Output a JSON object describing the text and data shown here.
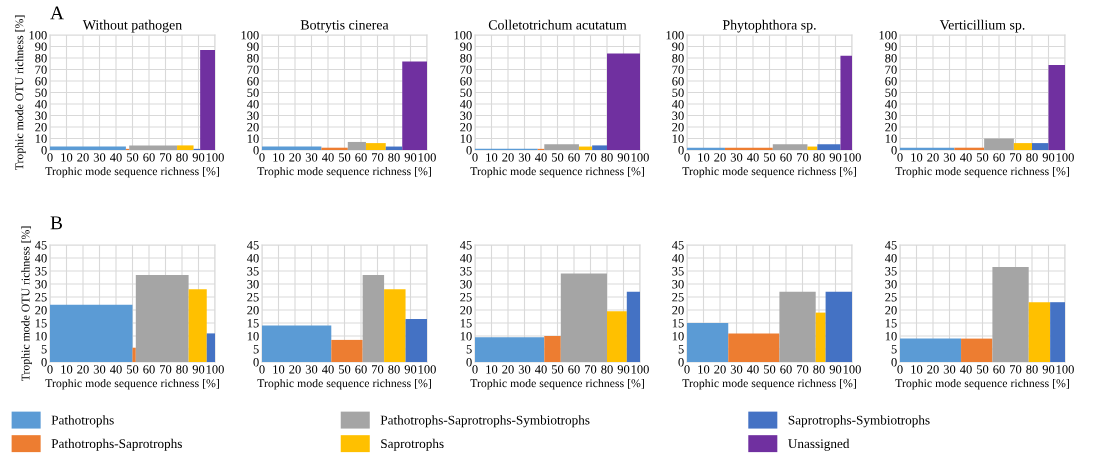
{
  "chart_data": [
    {
      "type": "histogram",
      "title": "Without pathogen",
      "xlabel": "Trophic mode sequence richness [%]",
      "ylabel": "Trophic mode OTU richness [%]",
      "annotations": [
        "A"
      ],
      "xlim": [
        0,
        100
      ],
      "xticks": [
        0,
        10,
        20,
        30,
        40,
        50,
        60,
        70,
        80,
        90,
        100
      ],
      "ylim": [
        0,
        100
      ],
      "yticks": [
        0,
        10,
        20,
        30,
        40,
        50,
        60,
        70,
        80,
        90,
        100
      ],
      "grid": true,
      "legend": "bottom",
      "bins": [
        0,
        46,
        48,
        77,
        87,
        91,
        100
      ],
      "series": [
        {
          "name": "Pathotrophs",
          "color": "#5b9bd5",
          "values": [
            3,
            null,
            null,
            null,
            null,
            null
          ]
        },
        {
          "name": "Pathotrophs-Saprotrophs",
          "color": "#ed7d31",
          "values": [
            null,
            1,
            null,
            null,
            null,
            null
          ]
        },
        {
          "name": "Pathotrophs-Saprotrophs-Symbiotrophs",
          "color": "#a5a5a5",
          "values": [
            null,
            null,
            4,
            null,
            null,
            null
          ]
        },
        {
          "name": "Saprotrophs",
          "color": "#ffc000",
          "values": [
            null,
            null,
            null,
            4,
            null,
            null
          ]
        },
        {
          "name": "Saprotrophs-Symbiotrophs",
          "color": "#4472c4",
          "values": [
            null,
            null,
            null,
            null,
            1,
            null
          ]
        },
        {
          "name": "Unassigned",
          "color": "#7030a0",
          "values": [
            null,
            null,
            null,
            null,
            null,
            87
          ]
        }
      ]
    },
    {
      "type": "histogram",
      "title": "Botrytis cinerea",
      "xlabel": "Trophic mode sequence richness [%]",
      "xlim": [
        0,
        100
      ],
      "xticks": [
        0,
        10,
        20,
        30,
        40,
        50,
        60,
        70,
        80,
        90,
        100
      ],
      "ylim": [
        0,
        100
      ],
      "yticks": [
        0,
        10,
        20,
        30,
        40,
        50,
        60,
        70,
        80,
        90,
        100
      ],
      "grid": true,
      "bins": [
        0,
        36,
        52,
        63,
        75,
        85,
        100
      ],
      "series": [
        {
          "color": "#5b9bd5",
          "values": [
            3,
            null,
            null,
            null,
            null,
            null
          ]
        },
        {
          "color": "#ed7d31",
          "values": [
            null,
            2,
            null,
            null,
            null,
            null
          ]
        },
        {
          "color": "#a5a5a5",
          "values": [
            null,
            null,
            7,
            null,
            null,
            null
          ]
        },
        {
          "color": "#ffc000",
          "values": [
            null,
            null,
            null,
            6,
            null,
            null
          ]
        },
        {
          "color": "#4472c4",
          "values": [
            null,
            null,
            null,
            null,
            3,
            null
          ]
        },
        {
          "color": "#7030a0",
          "values": [
            null,
            null,
            null,
            null,
            null,
            77
          ]
        }
      ]
    },
    {
      "type": "histogram",
      "title": "Colletotrichum acutatum",
      "xlabel": "Trophic mode sequence richness [%]",
      "xlim": [
        0,
        100
      ],
      "xticks": [
        0,
        10,
        20,
        30,
        40,
        50,
        60,
        70,
        80,
        90,
        100
      ],
      "ylim": [
        0,
        100
      ],
      "yticks": [
        0,
        10,
        20,
        30,
        40,
        50,
        60,
        70,
        80,
        90,
        100
      ],
      "grid": true,
      "bins": [
        0,
        38,
        42,
        63,
        71,
        80,
        100
      ],
      "series": [
        {
          "color": "#5b9bd5",
          "values": [
            1,
            null,
            null,
            null,
            null,
            null
          ]
        },
        {
          "color": "#ed7d31",
          "values": [
            null,
            1,
            null,
            null,
            null,
            null
          ]
        },
        {
          "color": "#a5a5a5",
          "values": [
            null,
            null,
            5,
            null,
            null,
            null
          ]
        },
        {
          "color": "#ffc000",
          "values": [
            null,
            null,
            null,
            3,
            null,
            null
          ]
        },
        {
          "color": "#4472c4",
          "values": [
            null,
            null,
            null,
            null,
            4,
            null
          ]
        },
        {
          "color": "#7030a0",
          "values": [
            null,
            null,
            null,
            null,
            null,
            84
          ]
        }
      ]
    },
    {
      "type": "histogram",
      "title": "Phytophthora sp.",
      "xlabel": "Trophic mode sequence richness [%]",
      "xlim": [
        0,
        100
      ],
      "xticks": [
        0,
        10,
        20,
        30,
        40,
        50,
        60,
        70,
        80,
        90,
        100
      ],
      "ylim": [
        0,
        100
      ],
      "yticks": [
        0,
        10,
        20,
        30,
        40,
        50,
        60,
        70,
        80,
        90,
        100
      ],
      "grid": true,
      "bins": [
        0,
        23,
        52,
        73,
        79,
        93,
        100
      ],
      "series": [
        {
          "color": "#5b9bd5",
          "values": [
            2,
            null,
            null,
            null,
            null,
            null
          ]
        },
        {
          "color": "#ed7d31",
          "values": [
            null,
            2,
            null,
            null,
            null,
            null
          ]
        },
        {
          "color": "#a5a5a5",
          "values": [
            null,
            null,
            5,
            null,
            null,
            null
          ]
        },
        {
          "color": "#ffc000",
          "values": [
            null,
            null,
            null,
            3,
            null,
            null
          ]
        },
        {
          "color": "#4472c4",
          "values": [
            null,
            null,
            null,
            null,
            5,
            null
          ]
        },
        {
          "color": "#7030a0",
          "values": [
            null,
            null,
            null,
            null,
            null,
            82
          ]
        }
      ]
    },
    {
      "type": "histogram",
      "title": "Verticillium sp.",
      "xlabel": "Trophic mode sequence richness [%]",
      "xlim": [
        0,
        100
      ],
      "xticks": [
        0,
        10,
        20,
        30,
        40,
        50,
        60,
        70,
        80,
        90,
        100
      ],
      "ylim": [
        0,
        100
      ],
      "yticks": [
        0,
        10,
        20,
        30,
        40,
        50,
        60,
        70,
        80,
        90,
        100
      ],
      "grid": true,
      "bins": [
        0,
        33,
        51,
        69,
        80,
        90,
        100
      ],
      "series": [
        {
          "color": "#5b9bd5",
          "values": [
            2,
            null,
            null,
            null,
            null,
            null
          ]
        },
        {
          "color": "#ed7d31",
          "values": [
            null,
            2,
            null,
            null,
            null,
            null
          ]
        },
        {
          "color": "#a5a5a5",
          "values": [
            null,
            null,
            10,
            null,
            null,
            null
          ]
        },
        {
          "color": "#ffc000",
          "values": [
            null,
            null,
            null,
            6,
            null,
            null
          ]
        },
        {
          "color": "#4472c4",
          "values": [
            null,
            null,
            null,
            null,
            6,
            null
          ]
        },
        {
          "color": "#7030a0",
          "values": [
            null,
            null,
            null,
            null,
            null,
            74
          ]
        }
      ]
    },
    {
      "type": "histogram",
      "xlabel": "Trophic mode sequence richness [%]",
      "ylabel": "Trophic mode OTU richness [%]",
      "annotations": [
        "B"
      ],
      "xlim": [
        0,
        100
      ],
      "xticks": [
        0,
        10,
        20,
        30,
        40,
        50,
        60,
        70,
        80,
        90,
        100
      ],
      "ylim": [
        0,
        45
      ],
      "yticks": [
        0,
        5,
        10,
        15,
        20,
        25,
        30,
        35,
        40,
        45
      ],
      "grid": true,
      "bins": [
        0,
        50,
        52,
        84,
        95,
        100
      ],
      "series": [
        {
          "color": "#5b9bd5",
          "values": [
            22,
            null,
            null,
            null,
            null
          ]
        },
        {
          "color": "#ed7d31",
          "values": [
            null,
            5.5,
            null,
            null,
            null
          ]
        },
        {
          "color": "#a5a5a5",
          "values": [
            null,
            null,
            33.5,
            null,
            null
          ]
        },
        {
          "color": "#ffc000",
          "values": [
            null,
            null,
            null,
            28,
            null
          ]
        },
        {
          "color": "#4472c4",
          "values": [
            null,
            null,
            null,
            null,
            11
          ]
        }
      ]
    },
    {
      "type": "histogram",
      "xlabel": "Trophic mode sequence richness [%]",
      "xlim": [
        0,
        100
      ],
      "xticks": [
        0,
        10,
        20,
        30,
        40,
        50,
        60,
        70,
        80,
        90,
        100
      ],
      "ylim": [
        0,
        45
      ],
      "yticks": [
        0,
        5,
        10,
        15,
        20,
        25,
        30,
        35,
        40,
        45
      ],
      "grid": true,
      "bins": [
        0,
        42,
        61,
        74,
        87,
        100
      ],
      "series": [
        {
          "color": "#5b9bd5",
          "values": [
            14,
            null,
            null,
            null,
            null
          ]
        },
        {
          "color": "#ed7d31",
          "values": [
            null,
            8.5,
            null,
            null,
            null
          ]
        },
        {
          "color": "#a5a5a5",
          "values": [
            null,
            null,
            33.5,
            null,
            null
          ]
        },
        {
          "color": "#ffc000",
          "values": [
            null,
            null,
            null,
            28,
            null
          ]
        },
        {
          "color": "#4472c4",
          "values": [
            null,
            null,
            null,
            null,
            16.5
          ]
        }
      ]
    },
    {
      "type": "histogram",
      "xlabel": "Trophic mode sequence richness [%]",
      "xlim": [
        0,
        100
      ],
      "xticks": [
        0,
        10,
        20,
        30,
        40,
        50,
        60,
        70,
        80,
        90,
        100
      ],
      "ylim": [
        0,
        45
      ],
      "yticks": [
        0,
        5,
        10,
        15,
        20,
        25,
        30,
        35,
        40,
        45
      ],
      "grid": true,
      "bins": [
        0,
        42,
        52,
        80,
        92,
        100
      ],
      "series": [
        {
          "color": "#5b9bd5",
          "values": [
            9.5,
            null,
            null,
            null,
            null
          ]
        },
        {
          "color": "#ed7d31",
          "values": [
            null,
            10,
            null,
            null,
            null
          ]
        },
        {
          "color": "#a5a5a5",
          "values": [
            null,
            null,
            34,
            null,
            null
          ]
        },
        {
          "color": "#ffc000",
          "values": [
            null,
            null,
            null,
            19.5,
            null
          ]
        },
        {
          "color": "#4472c4",
          "values": [
            null,
            null,
            null,
            null,
            27
          ]
        }
      ]
    },
    {
      "type": "histogram",
      "xlabel": "Trophic mode sequence richness [%]",
      "xlim": [
        0,
        100
      ],
      "xticks": [
        0,
        10,
        20,
        30,
        40,
        50,
        60,
        70,
        80,
        90,
        100
      ],
      "ylim": [
        0,
        45
      ],
      "yticks": [
        0,
        5,
        10,
        15,
        20,
        25,
        30,
        35,
        40,
        45
      ],
      "grid": true,
      "bins": [
        0,
        25,
        56,
        78,
        84,
        100
      ],
      "series": [
        {
          "color": "#5b9bd5",
          "values": [
            15,
            null,
            null,
            null,
            null
          ]
        },
        {
          "color": "#ed7d31",
          "values": [
            null,
            11,
            null,
            null,
            null
          ]
        },
        {
          "color": "#a5a5a5",
          "values": [
            null,
            null,
            27,
            null,
            null
          ]
        },
        {
          "color": "#ffc000",
          "values": [
            null,
            null,
            null,
            19,
            null
          ]
        },
        {
          "color": "#4472c4",
          "values": [
            null,
            null,
            null,
            null,
            27
          ]
        }
      ]
    },
    {
      "type": "histogram",
      "xlabel": "Trophic mode sequence richness [%]",
      "xlim": [
        0,
        100
      ],
      "xticks": [
        0,
        10,
        20,
        30,
        40,
        50,
        60,
        70,
        80,
        90,
        100
      ],
      "ylim": [
        0,
        45
      ],
      "yticks": [
        0,
        5,
        10,
        15,
        20,
        25,
        30,
        35,
        40,
        45
      ],
      "grid": true,
      "bins": [
        0,
        37,
        56,
        78,
        91,
        100
      ],
      "series": [
        {
          "color": "#5b9bd5",
          "values": [
            9,
            null,
            null,
            null,
            null
          ]
        },
        {
          "color": "#ed7d31",
          "values": [
            null,
            9,
            null,
            null,
            null
          ]
        },
        {
          "color": "#a5a5a5",
          "values": [
            null,
            null,
            36.5,
            null,
            null
          ]
        },
        {
          "color": "#ffc000",
          "values": [
            null,
            null,
            null,
            23,
            null
          ]
        },
        {
          "color": "#4472c4",
          "values": [
            null,
            null,
            null,
            null,
            23
          ]
        }
      ]
    }
  ]
}
